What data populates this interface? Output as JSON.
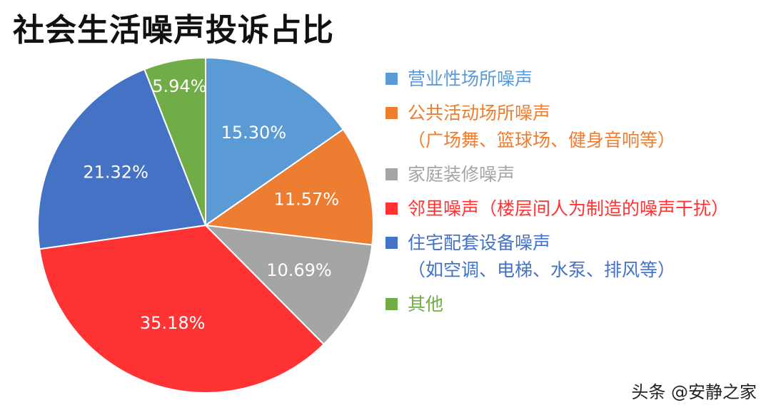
{
  "title": "社会生活噪声投诉占比",
  "watermark": "头条 @安静之家",
  "chart_data": {
    "type": "pie",
    "title": "社会生活噪声投诉占比",
    "legend_position": "right",
    "slices": [
      {
        "name": "营业性场所噪声",
        "sub": "",
        "value": 15.3,
        "label": "15.30%",
        "color": "#5B9BD5"
      },
      {
        "name": "公共活动场所噪声",
        "sub": "（广场舞、篮球场、健身音响等）",
        "value": 11.57,
        "label": "11.57%",
        "color": "#ED7D31"
      },
      {
        "name": "家庭装修噪声",
        "sub": "",
        "value": 10.69,
        "label": "10.69%",
        "color": "#A5A5A5"
      },
      {
        "name": "邻里噪声（楼层间人为制造的噪声干扰）",
        "sub": "",
        "value": 35.18,
        "label": "35.18%",
        "color": "#FF3333"
      },
      {
        "name": "住宅配套设备噪声",
        "sub": "（如空调、电梯、水泵、排风等）",
        "value": 21.32,
        "label": "21.32%",
        "color": "#4472C4"
      },
      {
        "name": "其他",
        "sub": "",
        "value": 5.94,
        "label": "5.94%",
        "color": "#70AD47"
      }
    ]
  }
}
